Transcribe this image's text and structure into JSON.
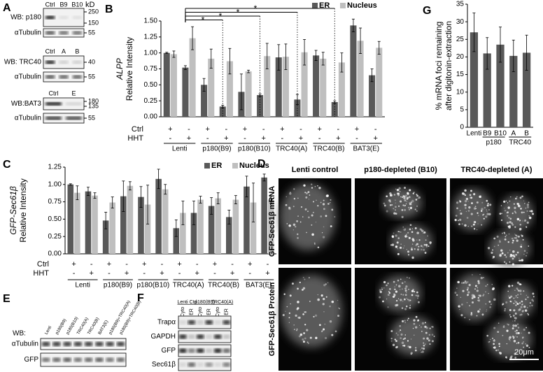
{
  "panel_letters": [
    "A",
    "B",
    "C",
    "D",
    "E",
    "F",
    "G"
  ],
  "chart_data": [
    {
      "type": "bar",
      "y_label": [
        "ALPP",
        "Relative Intensity"
      ],
      "y_label_italic": [
        true,
        false
      ],
      "categories": [
        null,
        null,
        null,
        null,
        null,
        null,
        null,
        null,
        null,
        null,
        null,
        null
      ],
      "series": [
        {
          "name": "ER",
          "color": "#595959",
          "values": [
            1.0,
            0.77,
            0.5,
            0.16,
            0.39,
            0.34,
            0.93,
            0.27,
            0.96,
            0.23,
            1.43,
            0.65
          ],
          "errors": [
            0.01,
            0.03,
            0.1,
            0.02,
            0.28,
            0.02,
            0.2,
            0.08,
            0.08,
            0.02,
            0.1,
            0.1
          ]
        },
        {
          "name": "Nucleus",
          "color": "#bfbfbf",
          "values": [
            0.98,
            1.23,
            0.91,
            0.87,
            0.71,
            0.95,
            0.94,
            1.01,
            0.91,
            0.85,
            1.19,
            1.08
          ],
          "errors": [
            0.05,
            0.18,
            0.15,
            0.2,
            0.02,
            0.2,
            0.2,
            0.2,
            0.1,
            0.15,
            0.2,
            0.1
          ]
        }
      ],
      "ylim": [
        0,
        1.5
      ],
      "yticks": [
        {
          "value": 0,
          "label": "0.00"
        },
        0.25,
        {
          "value": 0.5,
          "label": "0.50"
        },
        0.75,
        {
          "value": 1,
          "label": "1.00"
        },
        1.25,
        {
          "value": 1.5,
          "label": "1.50"
        }
      ],
      "rows": [
        {
          "label": "Ctrl",
          "marks": [
            "+",
            "-",
            "+",
            "-",
            "+",
            "-",
            "+",
            "-",
            "+",
            "-",
            "+",
            "-"
          ]
        },
        {
          "label": "HHT",
          "marks": [
            "-",
            "+",
            "-",
            "+",
            "-",
            "+",
            "-",
            "+",
            "-",
            "+",
            "-",
            "+"
          ]
        }
      ],
      "groups": [
        "Lenti",
        "p180(B9)",
        "p180(B10)",
        "TRC40(A)",
        "TRC40(B)",
        "BAT3(E)"
      ],
      "comparisons": [
        {
          "categories": [
            1,
            3
          ],
          "label": "*"
        },
        {
          "categories": [
            1,
            5
          ],
          "label": "*"
        },
        {
          "categories": [
            1,
            7
          ],
          "label": "*"
        },
        {
          "categories": [
            1,
            9
          ],
          "label": "*"
        }
      ]
    },
    {
      "type": "bar",
      "y_label": [
        "GFP-Sec61β",
        "Relative Intensity"
      ],
      "y_label_italic": [
        true,
        false
      ],
      "categories": [
        null,
        null,
        null,
        null,
        null,
        null,
        null,
        null,
        null,
        null,
        null,
        null
      ],
      "series": [
        {
          "name": "ER",
          "color": "#595959",
          "values": [
            1.0,
            0.9,
            0.48,
            0.83,
            0.82,
            1.08,
            0.37,
            0.59,
            0.69,
            0.53,
            0.97,
            1.1
          ],
          "errors": [
            0.01,
            0.06,
            0.12,
            0.22,
            0.15,
            0.14,
            0.12,
            0.17,
            0.12,
            0.1,
            0.15,
            0.05
          ]
        },
        {
          "name": "Nucleus",
          "color": "#bfbfbf",
          "values": [
            0.88,
            0.84,
            0.74,
            0.98,
            0.71,
            0.93,
            0.59,
            0.78,
            0.8,
            0.78,
            0.74,
            0.78
          ],
          "errors": [
            0.1,
            0.04,
            0.08,
            0.06,
            0.28,
            0.07,
            0.17,
            0.05,
            0.08,
            0.06,
            0.28,
            0.05
          ]
        }
      ],
      "ylim": [
        0,
        1.25
      ],
      "yticks": [
        {
          "value": 0,
          "label": "0.00"
        },
        0.25,
        {
          "value": 0.5,
          "label": "0.50"
        },
        0.75,
        {
          "value": 1,
          "label": "1.00"
        },
        1.25
      ],
      "rows": [
        {
          "label": "Ctrl",
          "marks": [
            "+",
            "-",
            "+",
            "-",
            "+",
            "-",
            "+",
            "-",
            "+",
            "-",
            "+",
            "-"
          ]
        },
        {
          "label": "HHT",
          "marks": [
            "-",
            "+",
            "-",
            "+",
            "-",
            "+",
            "-",
            "+",
            "-",
            "+",
            "-",
            "+"
          ]
        }
      ],
      "groups": [
        "Lenti",
        "p180(B9)",
        "p180(B10)",
        "TRC40(A)",
        "TRC40(B)",
        "BAT3(E)"
      ]
    },
    {
      "type": "bar",
      "y_label": [
        "% mRNA foci remaining",
        "after digitonin-extraction"
      ],
      "y_label_italic": [
        false,
        false
      ],
      "categories": [
        "Lenti",
        "B9",
        "B10",
        "A",
        "B"
      ],
      "series": [
        {
          "color": "#595959",
          "values": [
            27,
            21,
            23.5,
            20.3,
            21.2
          ],
          "errors": [
            5.5,
            4.5,
            5,
            4.5,
            5
          ]
        }
      ],
      "ylim": [
        0,
        35
      ],
      "yticks": [
        0,
        5,
        10,
        15,
        20,
        25,
        30,
        35
      ],
      "groups": [
        {
          "label": "p180",
          "members": [
            "B9",
            "B10"
          ]
        },
        {
          "label": "TRC40",
          "members": [
            "A",
            "B"
          ]
        }
      ]
    }
  ],
  "panel_a": {
    "kd_label": "kD",
    "sections": [
      {
        "lanes": [
          "Ctrl",
          "B9",
          "B10"
        ],
        "rows": [
          {
            "label": "WB: p180",
            "markers": [
              250,
              150
            ]
          },
          {
            "label": "αTubulin",
            "markers": [
              55
            ]
          }
        ]
      },
      {
        "lanes": [
          "Ctrl",
          "A",
          "B"
        ],
        "rows": [
          {
            "label": "WB: TRC40",
            "markers": [
              40
            ]
          },
          {
            "label": "αTubulin",
            "markers": [
              55
            ]
          }
        ]
      },
      {
        "lanes": [
          "Ctrl",
          "E"
        ],
        "rows": [
          {
            "label": "WB:BAT3",
            "markers": [
              180,
              135
            ]
          },
          {
            "label": "αTubulin",
            "markers": [
              55
            ]
          }
        ]
      }
    ]
  },
  "panel_d": {
    "columns": [
      "Lenti control",
      "p180-depleted (B10)",
      "TRC40-depleted (A)"
    ],
    "rows": [
      "GFP-Sec61β mRNA",
      "GFP-Sec61β Protein"
    ],
    "scale_bar": "20μm"
  },
  "panel_e": {
    "label": "WB:",
    "lanes": [
      "Lenti",
      "p180(B9)",
      "p180(B10)",
      "TRC40(A)",
      "TRC40(B)",
      "BAT3(E)",
      "p180(B9)+TRC40(A)",
      "p180(B9)+TRC40(B)"
    ],
    "rows": [
      "αTubulin",
      "GFP"
    ]
  },
  "panel_f": {
    "groups": [
      "Lenti Ctrl",
      "p180(B9)",
      "TRC40(A)"
    ],
    "fractions": [
      "Cyto",
      "ER",
      "Cyto",
      "ER",
      "Cyto",
      "ER"
    ],
    "rows": [
      "Trapα",
      "GAPDH",
      "GFP",
      "Sec61β"
    ]
  }
}
